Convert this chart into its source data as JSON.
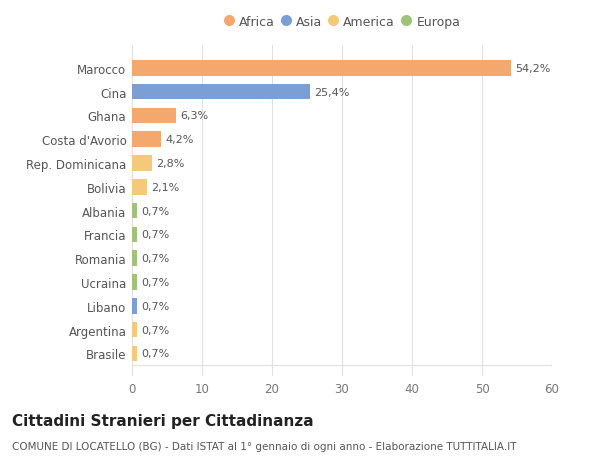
{
  "categories": [
    "Brasile",
    "Argentina",
    "Libano",
    "Ucraina",
    "Romania",
    "Francia",
    "Albania",
    "Bolivia",
    "Rep. Dominicana",
    "Costa d'Avorio",
    "Ghana",
    "Cina",
    "Marocco"
  ],
  "values": [
    0.7,
    0.7,
    0.7,
    0.7,
    0.7,
    0.7,
    0.7,
    2.1,
    2.8,
    4.2,
    6.3,
    25.4,
    54.2
  ],
  "labels": [
    "0,7%",
    "0,7%",
    "0,7%",
    "0,7%",
    "0,7%",
    "0,7%",
    "0,7%",
    "2,1%",
    "2,8%",
    "4,2%",
    "6,3%",
    "25,4%",
    "54,2%"
  ],
  "colors": [
    "#f5c97a",
    "#f5c97a",
    "#7b9fd4",
    "#9ec47a",
    "#9ec47a",
    "#9ec47a",
    "#9ec47a",
    "#f5c97a",
    "#f5c97a",
    "#f5a86e",
    "#f5a86e",
    "#7b9fd4",
    "#f5a86e"
  ],
  "legend_items": [
    {
      "label": "Africa",
      "color": "#f5a86e"
    },
    {
      "label": "Asia",
      "color": "#7b9fd4"
    },
    {
      "label": "America",
      "color": "#f5c97a"
    },
    {
      "label": "Europa",
      "color": "#9ec47a"
    }
  ],
  "title": "Cittadini Stranieri per Cittadinanza",
  "subtitle": "COMUNE DI LOCATELLO (BG) - Dati ISTAT al 1° gennaio di ogni anno - Elaborazione TUTTITALIA.IT",
  "xlim": [
    0,
    60
  ],
  "xticks": [
    0,
    10,
    20,
    30,
    40,
    50,
    60
  ],
  "background_color": "#ffffff",
  "grid_color": "#e0e0e0",
  "bar_height": 0.65,
  "title_fontsize": 11,
  "subtitle_fontsize": 7.5,
  "tick_fontsize": 8.5,
  "label_fontsize": 8
}
